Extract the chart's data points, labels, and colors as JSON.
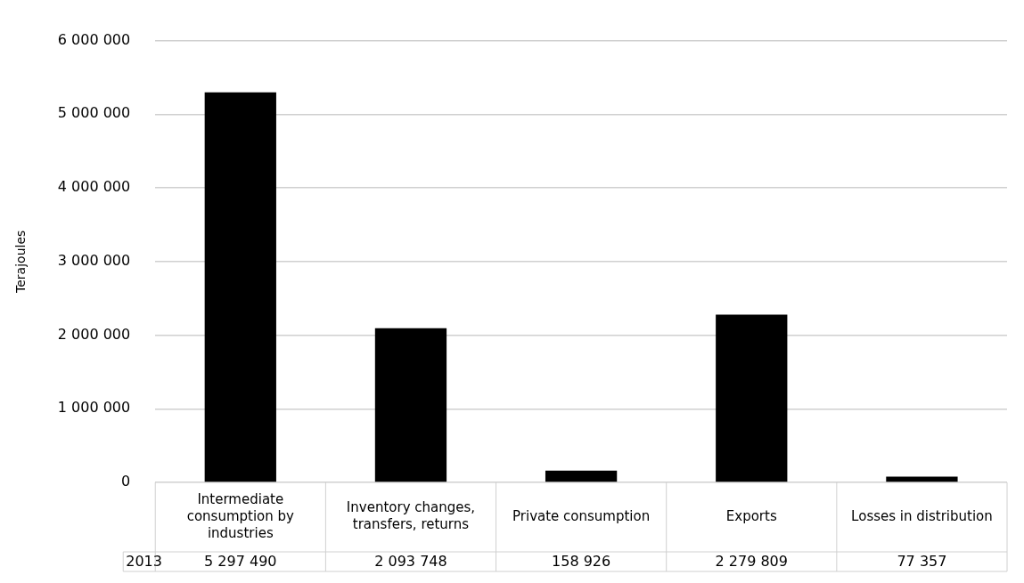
{
  "chart_data": {
    "type": "bar",
    "ylabel": "Terajoules",
    "categories": [
      "Intermediate consumption by industries",
      "Inventory changes, transfers, returns",
      "Private consumption",
      "Exports",
      "Losses in distribution"
    ],
    "series": [
      {
        "name": "2013",
        "color": "#000000",
        "values": [
          5297490,
          2093748,
          158926,
          2279809,
          77357
        ],
        "value_labels": [
          "5 297 490",
          "2 093 748",
          "158 926",
          "2 279 809",
          "77 357"
        ]
      }
    ],
    "ylim": [
      0,
      6000000
    ],
    "yticks": [
      {
        "value": 0,
        "label": "0"
      },
      {
        "value": 1000000,
        "label": "1 000 000"
      },
      {
        "value": 2000000,
        "label": "2 000 000"
      },
      {
        "value": 3000000,
        "label": "3 000 000"
      },
      {
        "value": 4000000,
        "label": "4 000 000"
      },
      {
        "value": 5000000,
        "label": "5 000 000"
      },
      {
        "value": 6000000,
        "label": "6 000 000"
      }
    ],
    "grid": "y",
    "legend": false
  }
}
